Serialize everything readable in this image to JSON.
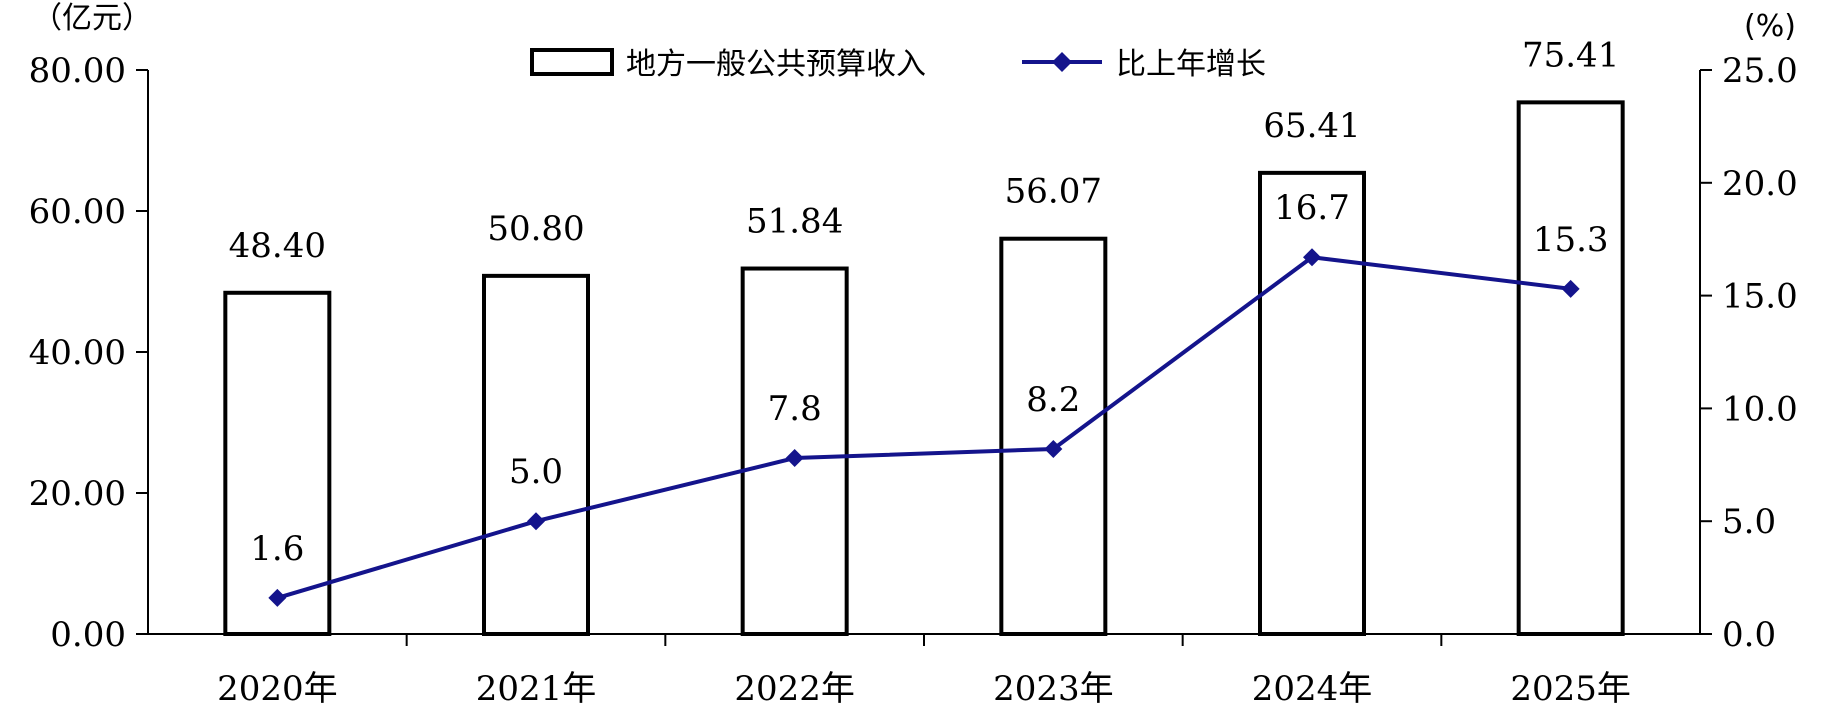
{
  "chart_data": {
    "type": "bar",
    "title": "",
    "categories": [
      "2020年",
      "2021年",
      "2022年",
      "2023年",
      "2024年",
      "2025年"
    ],
    "series": [
      {
        "name": "地方一般公共预算收入",
        "type": "bar",
        "axis": "left",
        "values": [
          48.4,
          50.8,
          51.84,
          56.07,
          65.41,
          75.41
        ],
        "labels": [
          "48.40",
          "50.80",
          "51.84",
          "56.07",
          "65.41",
          "75.41"
        ]
      },
      {
        "name": "比上年增长",
        "type": "line",
        "axis": "right",
        "values": [
          1.6,
          5.0,
          7.8,
          8.2,
          16.7,
          15.3
        ],
        "labels": [
          "1.6",
          "5.0",
          "7.8",
          "8.2",
          "16.7",
          "15.3"
        ]
      }
    ],
    "y_left": {
      "unit": "（亿元）",
      "ylim": [
        0,
        80
      ],
      "ticks": [
        0,
        20,
        40,
        60,
        80
      ],
      "tick_labels": [
        "0.00",
        "20.00",
        "40.00",
        "60.00",
        "80.00"
      ]
    },
    "y_right": {
      "unit": "(%)",
      "ylim": [
        0,
        25
      ],
      "ticks": [
        0,
        5,
        10,
        15,
        20,
        25
      ],
      "tick_labels": [
        "0.0",
        "5.0",
        "10.0",
        "15.0",
        "20.0",
        "25.0"
      ]
    },
    "grid": false,
    "legend_position": "top-center",
    "colors": {
      "bar_fill": "#ffffff",
      "bar_stroke": "#000000",
      "line": "#14148c",
      "marker": "#14148c"
    }
  }
}
